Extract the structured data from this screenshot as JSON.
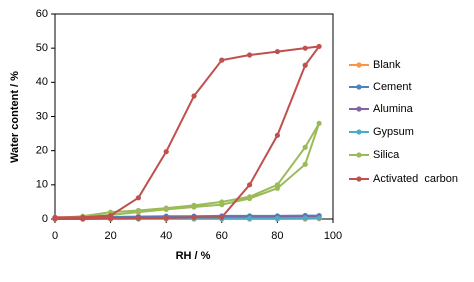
{
  "chart_data": {
    "type": "line",
    "xlabel": "RH / %",
    "ylabel": "Water content / %",
    "x": [
      0,
      10,
      20,
      30,
      40,
      50,
      60,
      70,
      80,
      90,
      95,
      90,
      80,
      70,
      60,
      50,
      40,
      30,
      20,
      10,
      0
    ],
    "xlim": [
      0,
      100
    ],
    "xticks": [
      0,
      20,
      40,
      60,
      80,
      100
    ],
    "ylim": [
      0,
      60
    ],
    "yticks": [
      0,
      10,
      20,
      30,
      40,
      50,
      60
    ],
    "grid": false,
    "legend": "right",
    "series": [
      {
        "name": "Blank",
        "color": "#f79646",
        "values": [
          0,
          0,
          0,
          0,
          0,
          0,
          0,
          0,
          0,
          0,
          0.1,
          0,
          0,
          0,
          0,
          0,
          0,
          0,
          0,
          0,
          0
        ]
      },
      {
        "name": "Cement",
        "color": "#4f81bd",
        "values": [
          0.4,
          0.5,
          0.6,
          0.7,
          0.8,
          0.8,
          0.9,
          0.9,
          0.9,
          1.0,
          1.0,
          1.0,
          0.9,
          0.9,
          0.9,
          0.8,
          0.8,
          0.7,
          0.6,
          0.5,
          0.4
        ]
      },
      {
        "name": "Alumina",
        "color": "#8064a2",
        "values": [
          0.2,
          0.3,
          0.3,
          0.4,
          0.4,
          0.5,
          0.5,
          0.5,
          0.6,
          0.6,
          0.7,
          0.6,
          0.6,
          0.5,
          0.5,
          0.5,
          0.4,
          0.4,
          0.3,
          0.3,
          0.2
        ]
      },
      {
        "name": "Gypsum",
        "color": "#4bacc6",
        "values": [
          0.1,
          0.1,
          0.1,
          0.1,
          0.2,
          0.2,
          0.2,
          0.2,
          0.2,
          0.3,
          0.3,
          0.3,
          0.2,
          0.2,
          0.2,
          0.2,
          0.2,
          0.1,
          0.1,
          0.1,
          0.1
        ]
      },
      {
        "name": "Silica",
        "color": "#9bbb59",
        "values": [
          0.2,
          0.5,
          1.2,
          2,
          2.8,
          3.5,
          4.2,
          6,
          9,
          16,
          28,
          21,
          10,
          6.5,
          5,
          4,
          3.2,
          2.5,
          2,
          0.8,
          0.3
        ]
      },
      {
        "name": "Activated  carbon",
        "color": "#c0504d",
        "values": [
          0,
          0,
          0.2,
          0.3,
          0.3,
          0.5,
          0.5,
          10,
          24.5,
          45,
          50.5,
          50,
          49,
          48,
          46.5,
          36,
          19.7,
          6.2,
          1,
          0.5,
          0.5
        ]
      }
    ]
  }
}
